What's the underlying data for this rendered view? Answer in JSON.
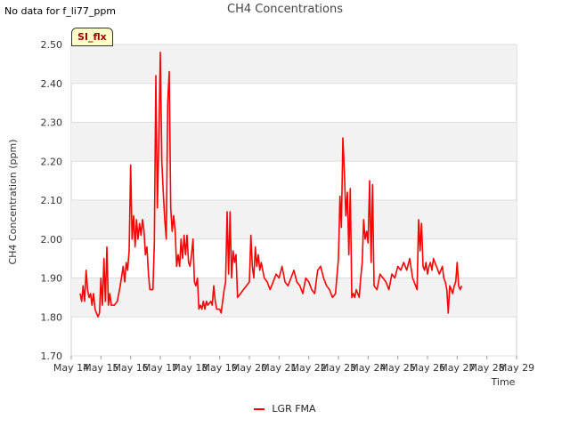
{
  "header": {
    "nodata": "No data for f_li77_ppm"
  },
  "badge": {
    "label": "SI_flx"
  },
  "chart_data": {
    "type": "line",
    "title": "CH4 Concentrations",
    "xlabel": "Time",
    "ylabel": "CH4 Concentration (ppm)",
    "ylim": [
      1.7,
      2.5
    ],
    "xlim": [
      14,
      29
    ],
    "yticks": [
      "1.70",
      "1.80",
      "1.90",
      "2.00",
      "2.10",
      "2.20",
      "2.30",
      "2.40",
      "2.50"
    ],
    "xticks": [
      "May 14",
      "May 15",
      "May 16",
      "May 17",
      "May 18",
      "May 19",
      "May 20",
      "May 21",
      "May 22",
      "May 23",
      "May 24",
      "May 25",
      "May 26",
      "May 27",
      "May 28",
      "May 29"
    ],
    "grid": true,
    "legend_position": "bottom",
    "series": [
      {
        "name": "LGR FMA",
        "color": "#ff0000",
        "points": [
          [
            14.3,
            1.86
          ],
          [
            14.35,
            1.84
          ],
          [
            14.4,
            1.88
          ],
          [
            14.45,
            1.84
          ],
          [
            14.5,
            1.92
          ],
          [
            14.55,
            1.87
          ],
          [
            14.6,
            1.85
          ],
          [
            14.65,
            1.86
          ],
          [
            14.7,
            1.83
          ],
          [
            14.75,
            1.86
          ],
          [
            14.8,
            1.82
          ],
          [
            14.85,
            1.81
          ],
          [
            14.9,
            1.8
          ],
          [
            14.95,
            1.81
          ],
          [
            15.0,
            1.9
          ],
          [
            15.05,
            1.83
          ],
          [
            15.1,
            1.95
          ],
          [
            15.15,
            1.84
          ],
          [
            15.2,
            1.98
          ],
          [
            15.25,
            1.83
          ],
          [
            15.3,
            1.86
          ],
          [
            15.35,
            1.83
          ],
          [
            15.45,
            1.83
          ],
          [
            15.55,
            1.84
          ],
          [
            15.65,
            1.88
          ],
          [
            15.75,
            1.93
          ],
          [
            15.8,
            1.89
          ],
          [
            15.85,
            1.94
          ],
          [
            15.9,
            1.92
          ],
          [
            15.95,
            1.97
          ],
          [
            16.0,
            2.19
          ],
          [
            16.05,
            2.0
          ],
          [
            16.1,
            2.06
          ],
          [
            16.15,
            1.98
          ],
          [
            16.2,
            2.05
          ],
          [
            16.25,
            2.0
          ],
          [
            16.3,
            2.04
          ],
          [
            16.35,
            2.01
          ],
          [
            16.4,
            2.05
          ],
          [
            16.45,
            2.02
          ],
          [
            16.5,
            1.96
          ],
          [
            16.55,
            1.98
          ],
          [
            16.6,
            1.91
          ],
          [
            16.65,
            1.87
          ],
          [
            16.75,
            1.87
          ],
          [
            16.8,
            1.99
          ],
          [
            16.85,
            2.42
          ],
          [
            16.9,
            2.08
          ],
          [
            16.95,
            2.25
          ],
          [
            17.0,
            2.48
          ],
          [
            17.05,
            2.2
          ],
          [
            17.1,
            2.12
          ],
          [
            17.15,
            2.05
          ],
          [
            17.2,
            2.0
          ],
          [
            17.25,
            2.35
          ],
          [
            17.3,
            2.43
          ],
          [
            17.35,
            2.08
          ],
          [
            17.4,
            2.02
          ],
          [
            17.45,
            2.06
          ],
          [
            17.5,
            2.02
          ],
          [
            17.55,
            1.93
          ],
          [
            17.6,
            1.96
          ],
          [
            17.65,
            1.93
          ],
          [
            17.7,
            2.0
          ],
          [
            17.75,
            1.95
          ],
          [
            17.8,
            2.01
          ],
          [
            17.85,
            1.96
          ],
          [
            17.9,
            2.01
          ],
          [
            17.95,
            1.94
          ],
          [
            18.0,
            1.93
          ],
          [
            18.05,
            1.96
          ],
          [
            18.1,
            2.0
          ],
          [
            18.15,
            1.89
          ],
          [
            18.2,
            1.88
          ],
          [
            18.25,
            1.9
          ],
          [
            18.3,
            1.82
          ],
          [
            18.35,
            1.83
          ],
          [
            18.4,
            1.82
          ],
          [
            18.45,
            1.84
          ],
          [
            18.5,
            1.82
          ],
          [
            18.55,
            1.84
          ],
          [
            18.6,
            1.83
          ],
          [
            18.7,
            1.84
          ],
          [
            18.75,
            1.83
          ],
          [
            18.8,
            1.88
          ],
          [
            18.85,
            1.84
          ],
          [
            18.9,
            1.82
          ],
          [
            19.0,
            1.82
          ],
          [
            19.05,
            1.81
          ],
          [
            19.1,
            1.84
          ],
          [
            19.15,
            1.87
          ],
          [
            19.2,
            1.89
          ],
          [
            19.25,
            2.07
          ],
          [
            19.3,
            1.91
          ],
          [
            19.35,
            2.07
          ],
          [
            19.4,
            1.9
          ],
          [
            19.45,
            1.97
          ],
          [
            19.5,
            1.94
          ],
          [
            19.55,
            1.96
          ],
          [
            19.6,
            1.85
          ],
          [
            19.7,
            1.86
          ],
          [
            19.8,
            1.87
          ],
          [
            19.9,
            1.88
          ],
          [
            20.0,
            1.89
          ],
          [
            20.05,
            2.01
          ],
          [
            20.1,
            1.93
          ],
          [
            20.15,
            1.9
          ],
          [
            20.2,
            1.98
          ],
          [
            20.25,
            1.93
          ],
          [
            20.3,
            1.96
          ],
          [
            20.35,
            1.92
          ],
          [
            20.4,
            1.94
          ],
          [
            20.5,
            1.9
          ],
          [
            20.6,
            1.89
          ],
          [
            20.7,
            1.87
          ],
          [
            20.8,
            1.89
          ],
          [
            20.9,
            1.91
          ],
          [
            21.0,
            1.9
          ],
          [
            21.1,
            1.93
          ],
          [
            21.2,
            1.89
          ],
          [
            21.3,
            1.88
          ],
          [
            21.4,
            1.9
          ],
          [
            21.5,
            1.92
          ],
          [
            21.6,
            1.89
          ],
          [
            21.7,
            1.88
          ],
          [
            21.8,
            1.86
          ],
          [
            21.9,
            1.9
          ],
          [
            22.0,
            1.89
          ],
          [
            22.1,
            1.87
          ],
          [
            22.2,
            1.86
          ],
          [
            22.3,
            1.92
          ],
          [
            22.4,
            1.93
          ],
          [
            22.5,
            1.9
          ],
          [
            22.6,
            1.88
          ],
          [
            22.7,
            1.87
          ],
          [
            22.8,
            1.85
          ],
          [
            22.9,
            1.86
          ],
          [
            23.0,
            1.95
          ],
          [
            23.05,
            2.11
          ],
          [
            23.1,
            2.03
          ],
          [
            23.15,
            2.26
          ],
          [
            23.2,
            2.17
          ],
          [
            23.25,
            2.06
          ],
          [
            23.3,
            2.12
          ],
          [
            23.35,
            1.96
          ],
          [
            23.4,
            2.13
          ],
          [
            23.45,
            1.85
          ],
          [
            23.5,
            1.86
          ],
          [
            23.55,
            1.85
          ],
          [
            23.6,
            1.87
          ],
          [
            23.65,
            1.86
          ],
          [
            23.7,
            1.85
          ],
          [
            23.75,
            1.9
          ],
          [
            23.8,
            1.94
          ],
          [
            23.85,
            2.05
          ],
          [
            23.9,
            2.0
          ],
          [
            23.95,
            2.02
          ],
          [
            24.0,
            1.99
          ],
          [
            24.05,
            2.15
          ],
          [
            24.1,
            1.94
          ],
          [
            24.15,
            2.14
          ],
          [
            24.2,
            1.88
          ],
          [
            24.3,
            1.87
          ],
          [
            24.4,
            1.91
          ],
          [
            24.5,
            1.9
          ],
          [
            24.6,
            1.89
          ],
          [
            24.7,
            1.87
          ],
          [
            24.8,
            1.91
          ],
          [
            24.9,
            1.9
          ],
          [
            25.0,
            1.93
          ],
          [
            25.1,
            1.92
          ],
          [
            25.2,
            1.94
          ],
          [
            25.3,
            1.92
          ],
          [
            25.4,
            1.95
          ],
          [
            25.5,
            1.9
          ],
          [
            25.6,
            1.88
          ],
          [
            25.65,
            1.87
          ],
          [
            25.7,
            2.05
          ],
          [
            25.75,
            1.97
          ],
          [
            25.8,
            2.04
          ],
          [
            25.85,
            1.93
          ],
          [
            25.9,
            1.92
          ],
          [
            25.95,
            1.94
          ],
          [
            26.0,
            1.91
          ],
          [
            26.05,
            1.93
          ],
          [
            26.1,
            1.94
          ],
          [
            26.15,
            1.92
          ],
          [
            26.2,
            1.95
          ],
          [
            26.25,
            1.94
          ],
          [
            26.3,
            1.93
          ],
          [
            26.35,
            1.92
          ],
          [
            26.4,
            1.91
          ],
          [
            26.45,
            1.92
          ],
          [
            26.5,
            1.93
          ],
          [
            26.55,
            1.9
          ],
          [
            26.6,
            1.89
          ],
          [
            26.65,
            1.87
          ],
          [
            26.7,
            1.81
          ],
          [
            26.75,
            1.88
          ],
          [
            26.8,
            1.87
          ],
          [
            26.85,
            1.86
          ],
          [
            26.9,
            1.88
          ],
          [
            26.95,
            1.89
          ],
          [
            27.0,
            1.94
          ],
          [
            27.05,
            1.88
          ],
          [
            27.1,
            1.87
          ],
          [
            27.15,
            1.88
          ]
        ]
      }
    ]
  }
}
